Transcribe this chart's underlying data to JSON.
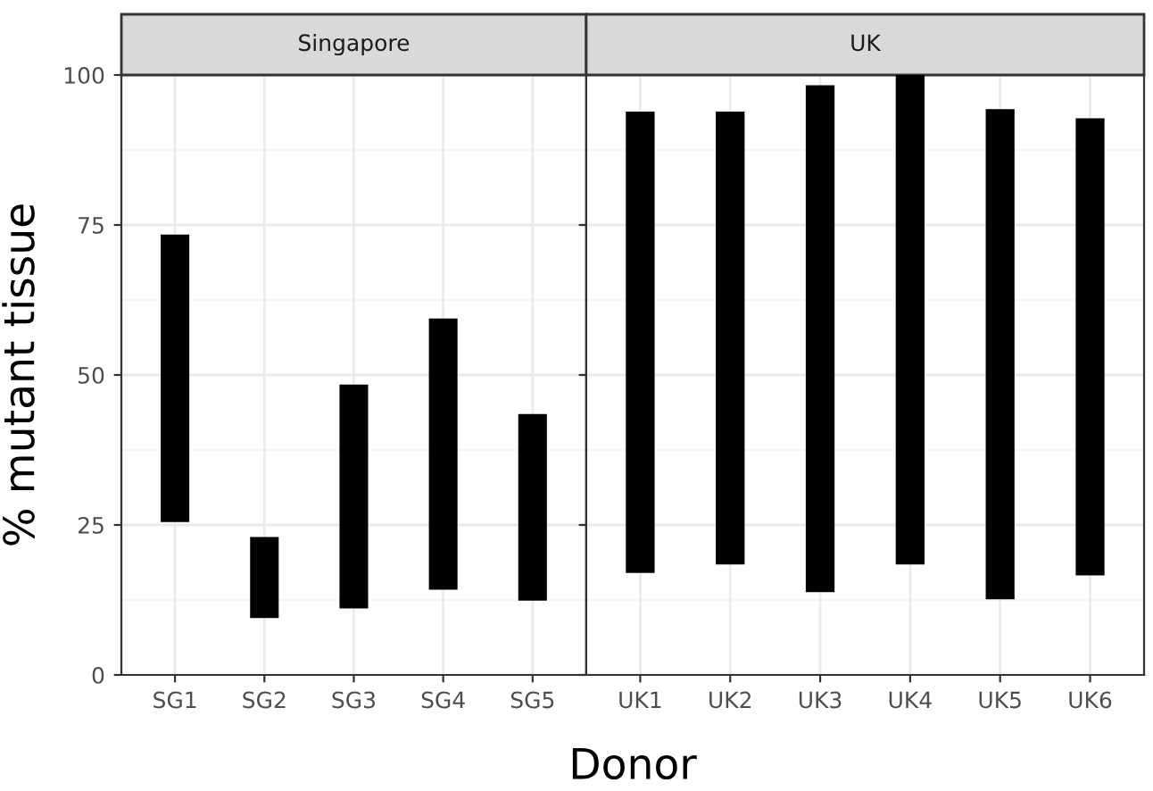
{
  "chart_data": [
    {
      "type": "bar",
      "title": "Singapore",
      "ylabel": "% mutant tissue",
      "xlabel": "Donor",
      "categories": [
        "SG1",
        "SG2",
        "SG3",
        "SG4",
        "SG5"
      ],
      "base": [
        25.5,
        9.5,
        11.1,
        14.2,
        12.4
      ],
      "values": [
        47.9,
        13.5,
        37.3,
        45.2,
        31.1
      ],
      "color": "#000000",
      "ylim": [
        0,
        100
      ],
      "yticks": [
        0,
        25,
        50,
        75,
        100
      ],
      "grid": true
    },
    {
      "type": "bar",
      "title": "UK",
      "categories": [
        "UK1",
        "UK2",
        "UK3",
        "UK4",
        "UK5",
        "UK6"
      ],
      "base": [
        17.0,
        18.4,
        13.8,
        18.4,
        12.6,
        16.6
      ],
      "values": [
        76.9,
        75.5,
        84.5,
        81.6,
        81.7,
        76.2
      ],
      "color": "#000000",
      "ylim": [
        0,
        100
      ],
      "yticks": [
        0,
        25,
        50,
        75,
        100
      ],
      "grid": true,
      "tick_labels": "x"
    }
  ]
}
